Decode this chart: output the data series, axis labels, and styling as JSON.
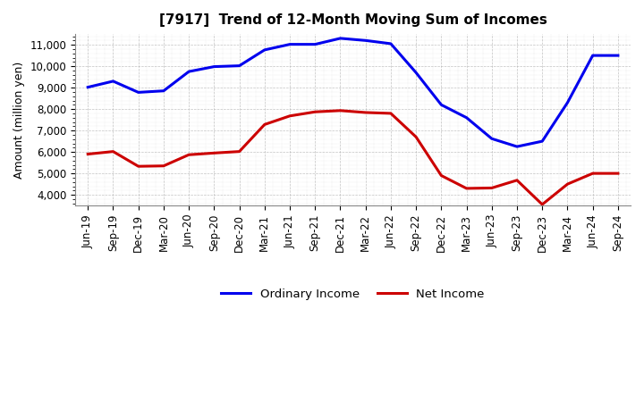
{
  "title": "[7917]  Trend of 12-Month Moving Sum of Incomes",
  "ylabel": "Amount (million yen)",
  "background_color": "#ffffff",
  "plot_background": "#ffffff",
  "grid_color": "#aaaaaa",
  "x_labels": [
    "Jun-19",
    "Sep-19",
    "Dec-19",
    "Mar-20",
    "Jun-20",
    "Sep-20",
    "Dec-20",
    "Mar-21",
    "Jun-21",
    "Sep-21",
    "Dec-21",
    "Mar-22",
    "Jun-22",
    "Sep-22",
    "Dec-22",
    "Mar-23",
    "Jun-23",
    "Sep-23",
    "Dec-23",
    "Mar-24",
    "Jun-24",
    "Sep-24"
  ],
  "ordinary_income": [
    9020,
    9300,
    8780,
    8850,
    9750,
    9980,
    10020,
    10760,
    11020,
    11020,
    11300,
    11200,
    11050,
    9700,
    8200,
    7600,
    6620,
    6250,
    6500,
    8300,
    10500,
    10500
  ],
  "net_income": [
    5900,
    6020,
    5330,
    5350,
    5870,
    5950,
    6020,
    7280,
    7680,
    7870,
    7930,
    7840,
    7800,
    6700,
    4900,
    4300,
    4320,
    4680,
    3550,
    4500,
    5000,
    5000
  ],
  "ordinary_income_color": "#0000ee",
  "net_income_color": "#cc0000",
  "ylim_min": 3500,
  "ylim_max": 11500,
  "yticks": [
    4000,
    5000,
    6000,
    7000,
    8000,
    9000,
    10000,
    11000
  ],
  "legend_ordinary": "Ordinary Income",
  "legend_net": "Net Income",
  "line_width": 2.2,
  "title_fontsize": 11,
  "axis_fontsize": 8.5,
  "ylabel_fontsize": 9
}
